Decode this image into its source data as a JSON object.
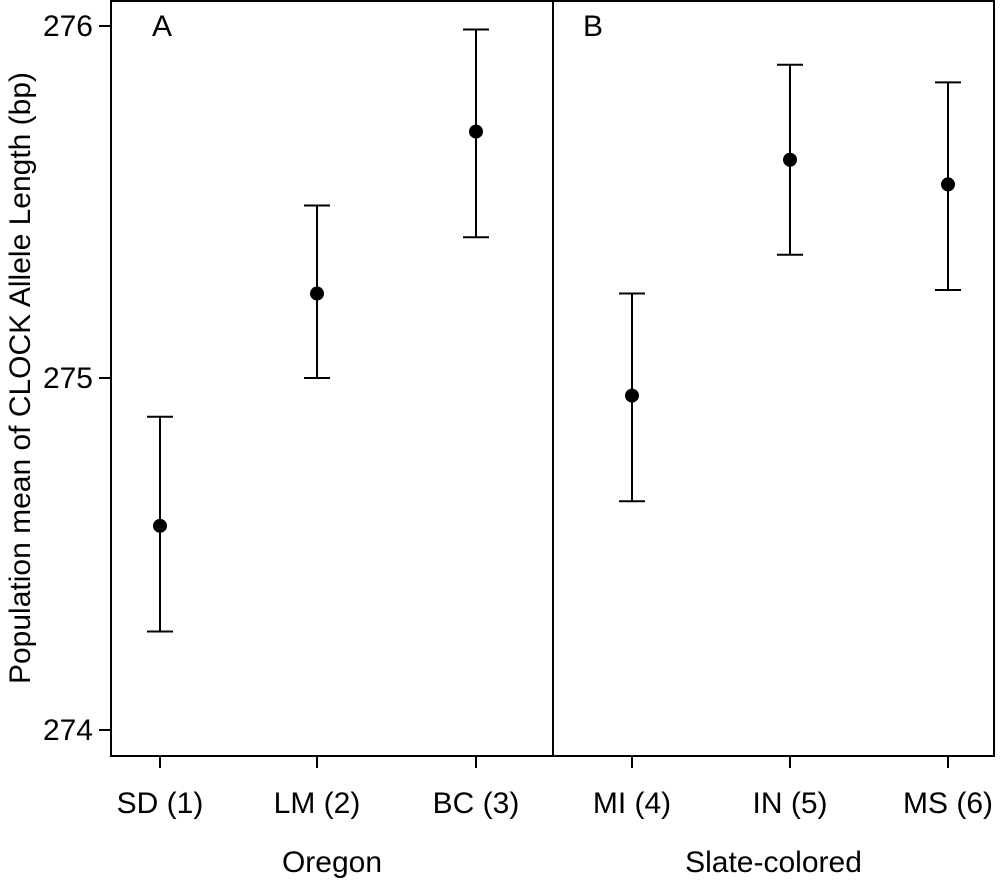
{
  "chart_data": {
    "type": "scatter",
    "error_bars": true,
    "ylabel": "Population mean of CLOCK Allele Length (bp)",
    "ylim": [
      274,
      276
    ],
    "yticks": [
      274,
      275,
      276
    ],
    "grid": false,
    "panels": [
      {
        "label": "A",
        "group": "Oregon",
        "categories": [
          "SD (1)",
          "LM (2)",
          "BC (3)"
        ],
        "values": [
          274.58,
          275.24,
          275.7
        ],
        "error_low": [
          274.28,
          275.0,
          275.4
        ],
        "error_high": [
          274.89,
          275.49,
          275.99
        ]
      },
      {
        "label": "B",
        "group": "Slate-colored",
        "categories": [
          "MI (4)",
          "IN (5)",
          "MS (6)"
        ],
        "values": [
          274.95,
          275.62,
          275.55
        ],
        "error_low": [
          274.65,
          275.35,
          275.25
        ],
        "error_high": [
          275.24,
          275.89,
          275.84
        ]
      }
    ]
  }
}
